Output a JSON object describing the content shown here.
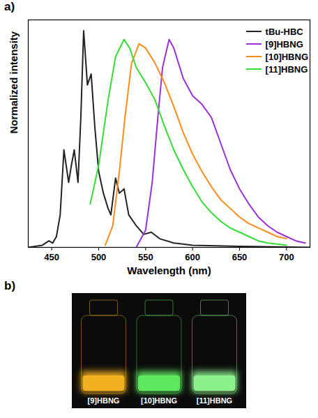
{
  "chart_data": {
    "type": "line",
    "panel_label": "a)",
    "x_label": "Wavelength (nm)",
    "y_label": "Normalized intensity",
    "xlim": [
      425,
      725
    ],
    "xticks": [
      450,
      500,
      550,
      600,
      650,
      700
    ],
    "ylim": [
      0,
      1.05
    ],
    "yticks": [],
    "tick_labels": "x",
    "grid": false,
    "legend": "top-right",
    "series": [
      {
        "name": "tBu-HBC",
        "color": "#222222",
        "x": [
          425,
          440,
          447,
          451,
          455,
          459,
          463,
          468,
          471,
          474,
          478,
          481,
          484,
          488,
          492,
          496,
          500,
          505,
          510,
          513,
          518,
          522,
          527,
          532,
          540,
          548,
          556,
          565,
          580,
          600,
          650,
          725
        ],
        "values": [
          0.0,
          0.01,
          0.03,
          0.02,
          0.05,
          0.15,
          0.45,
          0.3,
          0.38,
          0.45,
          0.3,
          0.6,
          1.0,
          0.75,
          0.8,
          0.55,
          0.35,
          0.25,
          0.18,
          0.15,
          0.32,
          0.25,
          0.27,
          0.15,
          0.1,
          0.06,
          0.07,
          0.04,
          0.02,
          0.01,
          0.005,
          0.0
        ]
      },
      {
        "name": "[9]HBNG",
        "color": "#9b30d9",
        "x": [
          540,
          550,
          557,
          563,
          568,
          575,
          580,
          590,
          600,
          610,
          620,
          630,
          640,
          650,
          660,
          670,
          680,
          690,
          700,
          710,
          720
        ],
        "values": [
          0.0,
          0.08,
          0.3,
          0.6,
          0.83,
          0.96,
          0.92,
          0.78,
          0.7,
          0.66,
          0.6,
          0.48,
          0.36,
          0.27,
          0.2,
          0.14,
          0.1,
          0.07,
          0.05,
          0.03,
          0.02
        ]
      },
      {
        "name": "[10]HBNG",
        "color": "#ff8c1a",
        "x": [
          507,
          515,
          522,
          528,
          535,
          543,
          550,
          560,
          570,
          580,
          590,
          600,
          610,
          620,
          630,
          640,
          650,
          660,
          670,
          680,
          690,
          700
        ],
        "values": [
          0.01,
          0.1,
          0.35,
          0.6,
          0.85,
          0.94,
          0.92,
          0.85,
          0.76,
          0.65,
          0.53,
          0.43,
          0.35,
          0.28,
          0.22,
          0.18,
          0.14,
          0.11,
          0.09,
          0.07,
          0.05,
          0.04
        ]
      },
      {
        "name": "[11]HBNG",
        "color": "#33dd33",
        "x": [
          491,
          500,
          510,
          518,
          527,
          533,
          540,
          550,
          560,
          570,
          580,
          590,
          600,
          610,
          620,
          630,
          640,
          650,
          660,
          670,
          680,
          690,
          700
        ],
        "values": [
          0.2,
          0.38,
          0.68,
          0.88,
          0.96,
          0.92,
          0.83,
          0.76,
          0.68,
          0.56,
          0.45,
          0.36,
          0.28,
          0.21,
          0.16,
          0.12,
          0.09,
          0.07,
          0.05,
          0.03,
          0.02,
          0.015,
          0.01
        ]
      }
    ]
  },
  "photo": {
    "panel_label": "b)",
    "vials": [
      {
        "label": "[9]HBNG",
        "color": "#f0b020"
      },
      {
        "label": "[10]HBNG",
        "color": "#5ee85e"
      },
      {
        "label": "[11]HBNG",
        "color": "#8cf08c"
      }
    ]
  }
}
